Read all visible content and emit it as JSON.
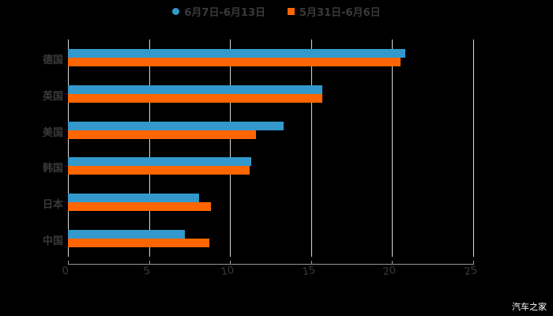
{
  "chart_data": {
    "type": "bar",
    "orientation": "horizontal",
    "title": "",
    "categories": [
      "德国",
      "英国",
      "美国",
      "韩国",
      "日本",
      "中国"
    ],
    "series": [
      {
        "name": "6月7日-6月13日",
        "color": "#3399cc",
        "values": [
          20.8,
          15.7,
          13.3,
          11.3,
          8.1,
          7.2
        ]
      },
      {
        "name": "5月31日-6月6日",
        "color": "#ff6600",
        "values": [
          20.5,
          15.7,
          11.6,
          11.2,
          8.8,
          8.7
        ]
      }
    ],
    "xlim": [
      0,
      25
    ],
    "xticks": [
      "0",
      "5",
      "10",
      "15",
      "20",
      "25"
    ],
    "grid": true,
    "legend_position": "top"
  },
  "legend": {
    "s1": "6月7日-6月13日",
    "s2": "5月31日-6月6日"
  },
  "watermark": "汽车之家"
}
